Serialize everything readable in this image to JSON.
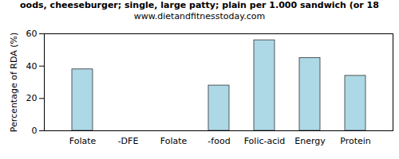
{
  "chart_data": {
    "type": "bar",
    "title": "oods, cheeseburger; single, large patty; plain per 1.000 sandwich (or 18",
    "subtitle": "www.dietandfitnesstoday.com",
    "y_label": "Percentage of RDA (%)",
    "categories": [
      "Folate",
      "-DFE",
      "Folate",
      "-food",
      "Folic-acid",
      "Energy",
      "Protein"
    ],
    "values": [
      38,
      0,
      0,
      28,
      56,
      45,
      34
    ],
    "color": "#add8e6",
    "ylim": [
      0,
      60
    ],
    "yticks": [
      0,
      20,
      40,
      60
    ],
    "grid": false
  }
}
